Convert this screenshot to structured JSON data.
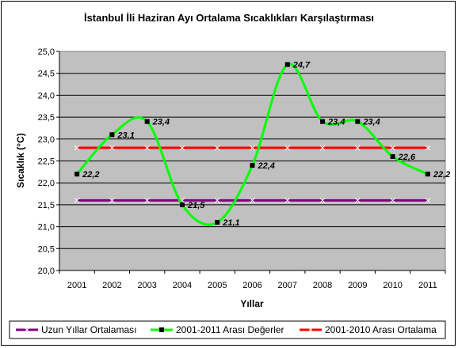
{
  "chart_data": {
    "type": "line",
    "title": "İstanbul İli Haziran Ayı Ortalama Sıcaklıkları Karşılaştırması",
    "xlabel": "Yıllar",
    "ylabel": "Sıcaklık (°C)",
    "categories": [
      "2001",
      "2002",
      "2003",
      "2004",
      "2005",
      "2006",
      "2007",
      "2008",
      "2009",
      "2010",
      "2011"
    ],
    "ylim": [
      20.0,
      25.0
    ],
    "ystep": 0.5,
    "ytick_labels": [
      "20,0",
      "20,5",
      "21,0",
      "21,5",
      "22,0",
      "22,5",
      "23,0",
      "23,5",
      "24,0",
      "24,5",
      "25,0"
    ],
    "grid": true,
    "legend_position": "bottom",
    "series": [
      {
        "name": "Uzun Yıllar Ortalaması",
        "color": "#800080",
        "marker": "x",
        "values": [
          21.6,
          21.6,
          21.6,
          21.6,
          21.6,
          21.6,
          21.6,
          21.6,
          21.6,
          21.6,
          21.6
        ]
      },
      {
        "name": "2001-2011 Arası Değerler",
        "color": "#00ff00",
        "marker": "square",
        "smooth": true,
        "values": [
          22.2,
          23.1,
          23.4,
          21.5,
          21.1,
          22.4,
          24.7,
          23.4,
          23.4,
          22.6,
          22.2
        ],
        "data_labels": [
          "22,2",
          "23,1",
          "23,4",
          "21,5",
          "21,1",
          "22,4",
          "24,7",
          "23,4",
          "23,4",
          "22,6",
          "22,2"
        ]
      },
      {
        "name": "2001-2010 Arası Ortalama",
        "color": "#ff0000",
        "marker": "x",
        "values": [
          22.8,
          22.8,
          22.8,
          22.8,
          22.8,
          22.8,
          22.8,
          22.8,
          22.8,
          22.8,
          22.8
        ]
      }
    ],
    "plot_background": "#c0c0c0"
  }
}
